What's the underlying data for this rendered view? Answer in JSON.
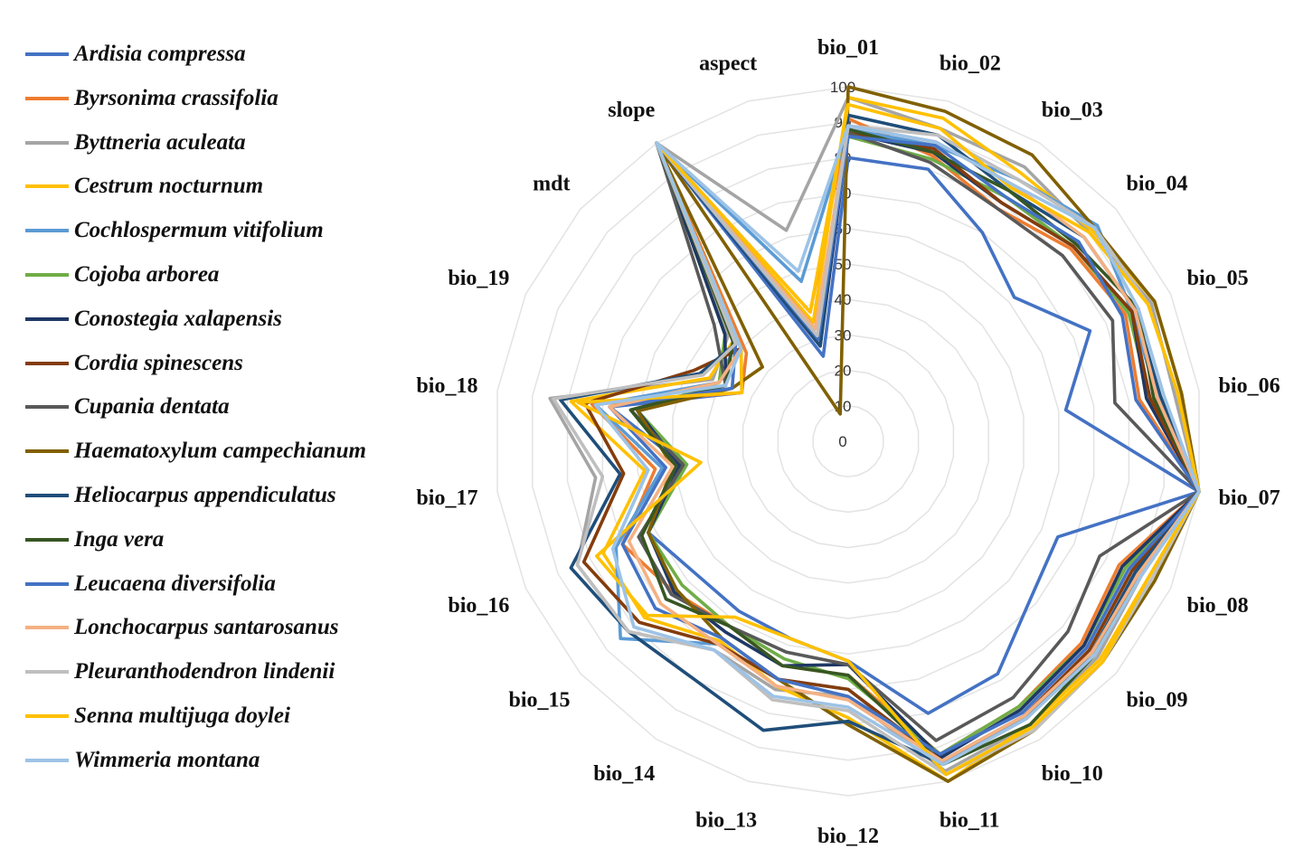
{
  "chart_data": {
    "type": "radar",
    "title": "",
    "axes": [
      "bio_01",
      "bio_02",
      "bio_03",
      "bio_04",
      "bio_05",
      "bio_06",
      "bio_07",
      "bio_08",
      "bio_09",
      "bio_10",
      "bio_11",
      "bio_12",
      "bio_13",
      "bio_14",
      "bio_15",
      "bio_16",
      "bio_17",
      "bio_18",
      "bio_19",
      "mdt",
      "slope",
      "aspect"
    ],
    "rlim": [
      0,
      100
    ],
    "ticks": [
      "0",
      "10",
      "20",
      "30",
      "40",
      "50",
      "60",
      "70",
      "80",
      "90",
      "100"
    ],
    "legend_position": "left",
    "series": [
      {
        "name": "Ardisia compressa",
        "color": "#4472C4",
        "values": [
          80,
          80,
          70,
          62,
          75,
          62,
          100,
          65,
          68,
          78,
          80,
          62,
          58,
          57,
          57,
          62,
          47,
          68,
          33,
          40,
          100,
          25
        ]
      },
      {
        "name": "Byrsonima crassifolia",
        "color": "#ED7D31",
        "values": [
          91,
          84,
          78,
          83,
          86,
          83,
          100,
          84,
          87,
          89,
          92,
          66,
          66,
          62,
          65,
          70,
          55,
          73,
          33,
          38,
          100,
          38
        ]
      },
      {
        "name": "Byttneria aculeata",
        "color": "#A5A5A5",
        "values": [
          97,
          92,
          92,
          90,
          94,
          93,
          100,
          91,
          93,
          95,
          97,
          72,
          73,
          70,
          82,
          84,
          72,
          85,
          42,
          45,
          100,
          62
        ]
      },
      {
        "name": "Cestrum nocturnum",
        "color": "#FFC000",
        "values": [
          97,
          95,
          90,
          91,
          95,
          95,
          100,
          93,
          94,
          95,
          100,
          78,
          72,
          67,
          76,
          76,
          58,
          79,
          43,
          43,
          100,
          35
        ]
      },
      {
        "name": "Cochlospermum vitifolium",
        "color": "#5B9BD5",
        "values": [
          88,
          87,
          88,
          93,
          88,
          88,
          100,
          89,
          91,
          92,
          95,
          70,
          70,
          68,
          85,
          72,
          53,
          72,
          40,
          42,
          100,
          47
        ]
      },
      {
        "name": "Cojoba arborea",
        "color": "#70AD47",
        "values": [
          86,
          83,
          82,
          84,
          87,
          86,
          100,
          86,
          88,
          89,
          92,
          67,
          64,
          62,
          62,
          62,
          46,
          60,
          40,
          46,
          100,
          30
        ]
      },
      {
        "name": "Conostegia xalapensis",
        "color": "#1F3864",
        "values": [
          87,
          85,
          80,
          84,
          88,
          85,
          100,
          85,
          88,
          90,
          93,
          63,
          66,
          64,
          65,
          62,
          48,
          60,
          38,
          46,
          100,
          28
        ]
      },
      {
        "name": "Cordia spinescens",
        "color": "#843C0C",
        "values": [
          87,
          86,
          80,
          84,
          88,
          86,
          100,
          88,
          90,
          92,
          94,
          70,
          70,
          68,
          78,
          82,
          64,
          75,
          48,
          40,
          100,
          33
        ]
      },
      {
        "name": "Cupania dentata",
        "color": "#595959",
        "values": [
          87,
          82,
          78,
          80,
          82,
          76,
          100,
          78,
          82,
          86,
          88,
          63,
          62,
          62,
          66,
          65,
          47,
          62,
          38,
          50,
          100,
          30
        ]
      },
      {
        "name": "Haematoxylum campechianum",
        "color": "#806000",
        "values": [
          100,
          97,
          96,
          92,
          95,
          95,
          100,
          95,
          95,
          97,
          100,
          80,
          70,
          66,
          64,
          62,
          50,
          60,
          36,
          32,
          100,
          8
        ]
      },
      {
        "name": "Heliocarpus appendiculatus",
        "color": "#1F4E79",
        "values": [
          92,
          90,
          84,
          88,
          89,
          89,
          100,
          89,
          91,
          93,
          95,
          79,
          85,
          80,
          82,
          86,
          65,
          82,
          46,
          42,
          100,
          28
        ]
      },
      {
        "name": "Inga vera",
        "color": "#375623",
        "values": [
          88,
          85,
          84,
          85,
          90,
          87,
          100,
          90,
          92,
          95,
          95,
          66,
          66,
          62,
          68,
          64,
          49,
          62,
          38,
          43,
          100,
          30
        ]
      },
      {
        "name": "Leucaena diversifolia",
        "color": "#4472C4",
        "values": [
          86,
          87,
          82,
          86,
          85,
          82,
          100,
          87,
          89,
          91,
          92,
          72,
          70,
          66,
          72,
          70,
          52,
          68,
          36,
          42,
          100,
          30
        ]
      },
      {
        "name": "Lonchocarpus santarosanus",
        "color": "#F4B183",
        "values": [
          89,
          88,
          86,
          88,
          89,
          88,
          100,
          90,
          91,
          92,
          94,
          73,
          72,
          68,
          70,
          68,
          50,
          68,
          40,
          40,
          100,
          33
        ]
      },
      {
        "name": "Pleuranthodendron lindenii",
        "color": "#BFBFBF",
        "values": [
          89,
          90,
          88,
          92,
          93,
          94,
          100,
          94,
          95,
          97,
          98,
          76,
          76,
          70,
          82,
          84,
          70,
          84,
          45,
          42,
          100,
          31
        ]
      },
      {
        "name": "Senna multijuga doylei",
        "color": "#FFC000",
        "values": [
          95,
          92,
          85,
          90,
          93,
          94,
          100,
          93,
          95,
          96,
          98,
          62,
          58,
          59,
          75,
          78,
          42,
          77,
          33,
          40,
          100,
          38
        ]
      },
      {
        "name": "Wimmeria montana",
        "color": "#9DC3E6",
        "values": [
          89,
          88,
          86,
          92,
          90,
          90,
          100,
          91,
          92,
          93,
          95,
          75,
          75,
          70,
          80,
          73,
          57,
          72,
          38,
          40,
          100,
          50
        ]
      }
    ]
  }
}
